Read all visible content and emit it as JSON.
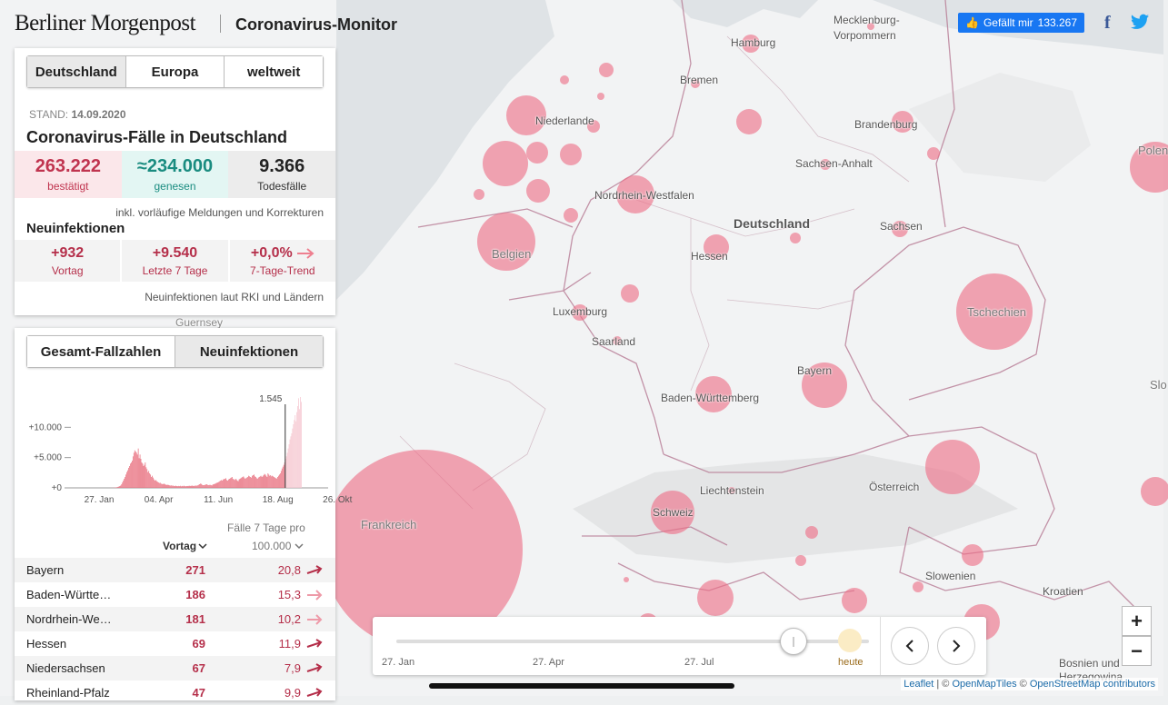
{
  "header": {
    "brand": "Berliner Morgenpost",
    "title": "Coronavirus-Monitor",
    "like_label": "Gefällt mir",
    "like_count": "133.267",
    "facebook_glyph": "f"
  },
  "region_tabs": [
    "Deutschland",
    "Europa",
    "weltweit"
  ],
  "stand_label": "STAND:",
  "stand_date": "14.09.2020",
  "main_title": "Coronavirus-Fälle in Deutschland",
  "stats": {
    "confirmed_value": "263.222",
    "confirmed_label": "bestätigt",
    "recovered_value": "≈234.000",
    "recovered_label": "genesen",
    "deaths_value": "9.366",
    "deaths_label": "Todesfälle"
  },
  "note_included": "inkl. vorläufige Meldungen und Korrekturen",
  "new_infections": {
    "title": "Neuinfektionen",
    "vortag_value": "+932",
    "vortag_label": "Vortag",
    "week_value": "+9.540",
    "week_label": "Letzte 7 Tage",
    "trend_value": "+0,0%",
    "trend_label": "7-Tage-Trend"
  },
  "note_rki": "Neuinfektionen laut RKI und Ländern",
  "chart_tabs": [
    "Gesamt-Fallzahlen",
    "Neuinfektionen"
  ],
  "chart_data": {
    "type": "bar",
    "title": "Neuinfektionen",
    "marker_value": "1.545",
    "yticks": [
      "+0",
      "+5.000",
      "+10.000"
    ],
    "ylim": [
      0,
      15000
    ],
    "xticks": [
      "27. Jan",
      "04. Apr",
      "11. Jun",
      "18. Aug",
      "26. Okt"
    ],
    "days_total": 280,
    "marker_day": 231,
    "series": [
      {
        "name": "Neuinfektionen",
        "values": [
          0,
          0,
          0,
          0,
          0,
          0,
          0,
          0,
          0,
          0,
          0,
          0,
          0,
          0,
          0,
          0,
          0,
          0,
          0,
          0,
          0,
          0,
          0,
          0,
          0,
          0,
          0,
          0,
          0,
          0,
          5,
          8,
          10,
          15,
          20,
          30,
          40,
          60,
          80,
          120,
          170,
          230,
          300,
          400,
          600,
          900,
          1200,
          1500,
          1800,
          2200,
          2600,
          2900,
          3300,
          3600,
          4000,
          4200,
          4500,
          5200,
          5800,
          6200,
          6000,
          5800,
          5500,
          6500,
          4900,
          5500,
          4800,
          4200,
          4000,
          3600,
          3800,
          4200,
          3400,
          3100,
          2600,
          2800,
          2400,
          2200,
          1800,
          2000,
          1700,
          1400,
          1200,
          1300,
          1100,
          1000,
          900,
          800,
          850,
          700,
          650,
          600,
          700,
          650,
          550,
          500,
          480,
          520,
          450,
          400,
          380,
          420,
          350,
          380,
          300,
          320,
          350,
          300,
          280,
          320,
          290,
          340,
          260,
          320,
          280,
          360,
          300,
          260,
          300,
          310,
          290,
          350,
          330,
          300,
          380,
          350,
          320,
          300,
          400,
          350,
          380,
          420,
          500,
          600,
          700,
          650,
          500,
          450,
          450,
          500,
          550,
          600,
          500,
          450,
          480,
          500,
          450,
          400,
          550,
          600,
          650,
          700,
          800,
          850,
          900,
          1000,
          1100,
          1200,
          1300,
          1200,
          1400,
          1450,
          1500,
          1600,
          1300,
          1200,
          1400,
          1500,
          1600,
          1700,
          1800,
          1500,
          1400,
          1300,
          1500,
          1400,
          1200,
          1100,
          1400,
          1500,
          1600,
          1700,
          1800,
          1900,
          1700,
          1500,
          1600,
          1700,
          1800,
          2000,
          1900,
          1800,
          1700,
          2000,
          2100,
          2200,
          1900,
          1800,
          1600,
          1500,
          1700,
          1800,
          1900,
          2000,
          1800,
          1900,
          2100,
          2300,
          2200,
          2000,
          1800,
          2400,
          2200,
          2000,
          2100,
          1900,
          2000,
          1900,
          1800,
          1700,
          1600,
          1545,
          1800,
          2000,
          2200,
          2400,
          2800,
          3200,
          3500,
          3800,
          4200,
          4800,
          5200,
          5800,
          6500,
          7200,
          8000,
          8500,
          9000,
          9800,
          10500,
          11200,
          12000,
          11000,
          12500,
          13500,
          14800,
          13000,
          15000,
          14200
        ]
      }
    ]
  },
  "table": {
    "col2_header_line1": "Fälle 7 Tage pro",
    "col2_header_line2": "100.000",
    "vortag_header": "Vortag",
    "rows": [
      {
        "name": "Bayern",
        "vortag": "271",
        "value": "20,8",
        "trend": "up"
      },
      {
        "name": "Baden-Württe…",
        "vortag": "186",
        "value": "15,3",
        "trend": "flat"
      },
      {
        "name": "Nordrhein-We…",
        "vortag": "181",
        "value": "10,2",
        "trend": "flat"
      },
      {
        "name": "Hessen",
        "vortag": "69",
        "value": "11,9",
        "trend": "up"
      },
      {
        "name": "Niedersachsen",
        "vortag": "67",
        "value": "7,9",
        "trend": "up"
      },
      {
        "name": "Rheinland-Pfalz",
        "vortag": "47",
        "value": "9,9",
        "trend": "up"
      }
    ]
  },
  "map": {
    "labels": {
      "hamburg": "Hamburg",
      "mecklenburg": "Mecklenburg-",
      "vorpommern": "Vorpommern",
      "bremen": "Bremen",
      "niederlande": "Niederlande",
      "brandenburg": "Brandenburg",
      "sachsen_anhalt": "Sachsen-Anhalt",
      "nrw": "Nordrhein-Westfalen",
      "deutschland": "Deutschland",
      "sachsen": "Sachsen",
      "belgien": "Belgien",
      "hessen": "Hessen",
      "polen": "Polen",
      "tschechien": "Tschechien",
      "luxemburg": "Luxemburg",
      "saarland": "Saarland",
      "bayern": "Bayern",
      "bw": "Baden-Württemberg",
      "frankreich": "Frankreich",
      "schweiz": "Schweiz",
      "liechtenstein": "Liechtenstein",
      "oesterreich": "Österreich",
      "slowenien": "Slowenien",
      "kroatien": "Kroatien",
      "bosnien": "Bosnien und",
      "herzegowina": "Herzegowina",
      "guernsey": "Guernsey",
      "slo": "Slo"
    },
    "bubble_color": "#ee6e86"
  },
  "timeline": {
    "start_label": "27. Jan",
    "mid1_label": "27. Apr",
    "mid2_label": "27. Jul",
    "today_label": "heute",
    "position_fraction": 0.84
  },
  "zoom": {
    "in_label": "+",
    "out_label": "−"
  },
  "attribution": {
    "leaflet": "Leaflet",
    "sep": " | © ",
    "omt": "OpenMapTiles",
    "sep2": " © ",
    "osm": "OpenStreetMap contributors"
  }
}
